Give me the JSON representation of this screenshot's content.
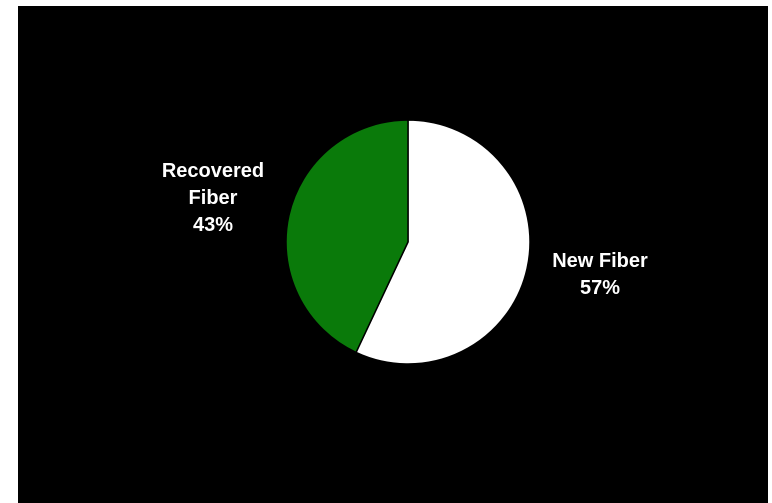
{
  "chart_data": {
    "type": "pie",
    "title": "",
    "background": "#000000",
    "start_angle_deg": 0,
    "direction": "clockwise",
    "slices": [
      {
        "name": "New Fiber",
        "value": 57,
        "color": "#ffffff",
        "label_lines": [
          "New Fiber",
          "57%"
        ]
      },
      {
        "name": "Recovered Fiber",
        "value": 43,
        "color": "#0a7a0a",
        "label_lines": [
          "Recovered",
          "Fiber",
          "43%"
        ]
      }
    ]
  }
}
